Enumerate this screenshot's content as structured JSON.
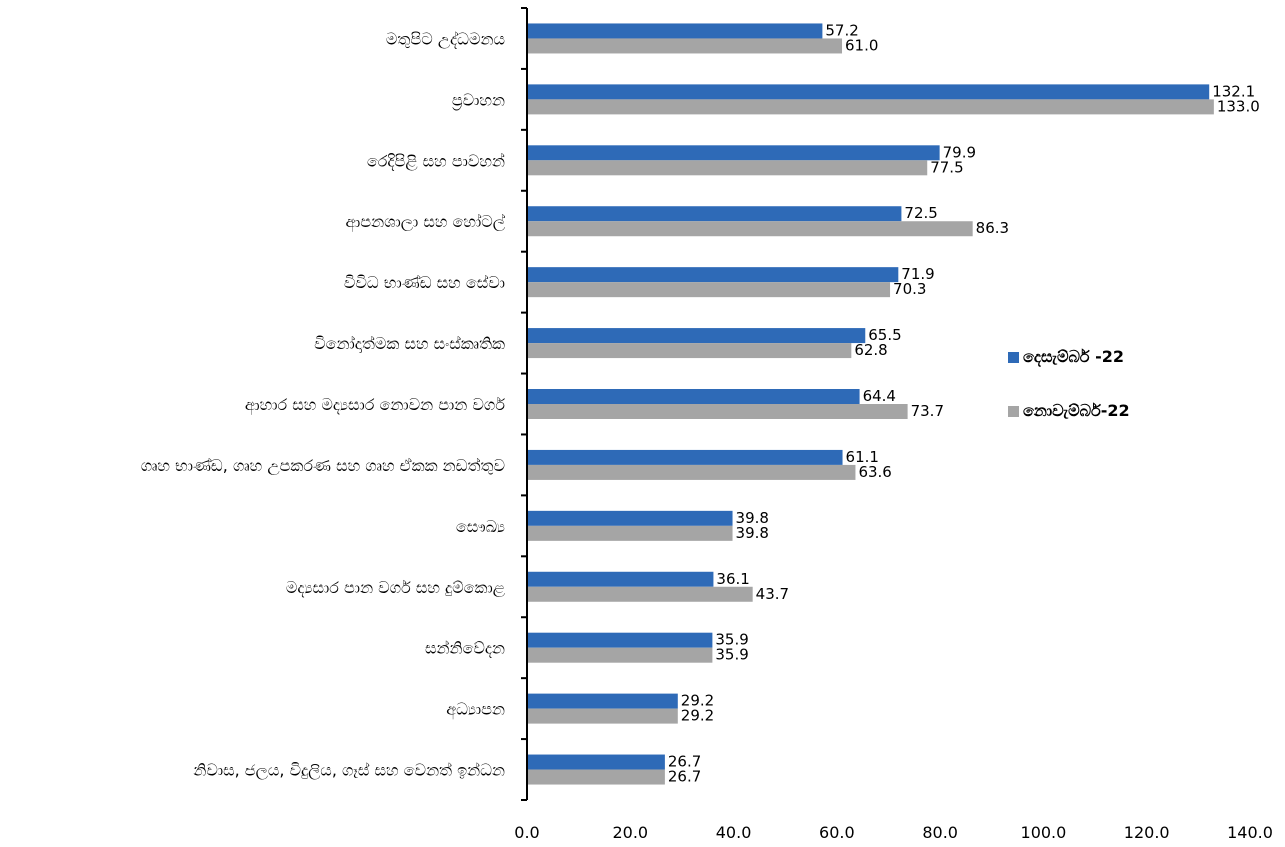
{
  "chart_data": {
    "type": "bar",
    "orientation": "horizontal",
    "categories": [
      "මතුපිට උද්ධමනය",
      "ප්‍රවාහන",
      "රෙදිපිළි සහ පාවහන්",
      "ආපනශාලා සහ හෝටල්",
      "විවිධ භාණ්ඩ සහ සේවා",
      "විනෝදාත්මක සහ සංස්කෘතික",
      "ආහාර සහ මද්‍යසාර නොවන පාන වර්ග",
      "ගෘහ භාණ්ඩ, ගෘහ උපකරණ සහ ගෘහ ඒකක නඩත්තුව",
      "සෞඛ්‍ය",
      "මද්‍යසාර පාන වර්ග සහ දුම්කොළ",
      "සන්නිවේදන",
      "අධ්‍යාපන",
      "නිවාස, ජලය, විදුලිය, ගෑස් සහ වෙනත් ඉන්ධන"
    ],
    "series": [
      {
        "name": "දෙසැම්බර් -22",
        "color": "#2E6AB7",
        "values": [
          57.2,
          132.1,
          79.9,
          72.5,
          71.9,
          65.5,
          64.4,
          61.1,
          39.8,
          36.1,
          35.9,
          29.2,
          26.7
        ],
        "value_labels": [
          "57.2",
          "132.1",
          "79.9",
          "72.5",
          "71.9",
          "65.5",
          "64.4",
          "61.1",
          "39.8",
          "36.1",
          "35.9",
          "29.2",
          "26.7"
        ]
      },
      {
        "name": "නොවැම්බර්-22",
        "color": "#A5A5A5",
        "values": [
          61.0,
          133.0,
          77.5,
          86.3,
          70.3,
          62.8,
          73.7,
          63.6,
          39.8,
          43.7,
          35.9,
          29.2,
          26.7
        ],
        "value_labels": [
          "61.0",
          "133.0",
          "77.5",
          "86.3",
          "70.3",
          "62.8",
          "73.7",
          "63.6",
          "39.8",
          "43.7",
          "35.9",
          "29.2",
          "26.7"
        ]
      }
    ],
    "xlim": [
      0,
      140
    ],
    "xticks": [
      "0.0",
      "20.0",
      "40.0",
      "60.0",
      "80.0",
      "100.0",
      "120.0",
      "140.0"
    ],
    "xtick_values": [
      0,
      20,
      40,
      60,
      80,
      100,
      120,
      140
    ],
    "legend_position": "right",
    "grid": false
  }
}
